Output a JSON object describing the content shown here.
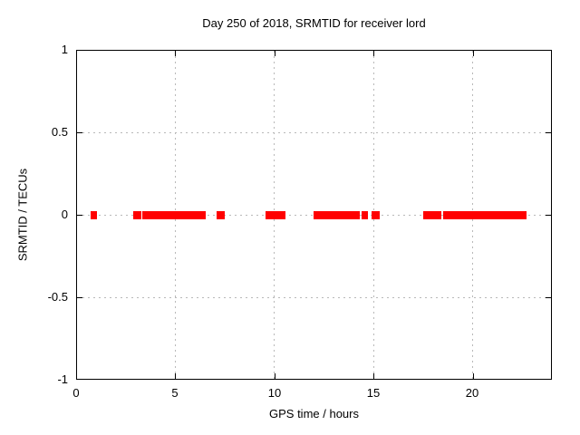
{
  "window": {
    "background": "#ffffff"
  },
  "colors": {
    "marker": "#ff0000",
    "grid": "#b9b9b9",
    "border": "#000000",
    "text": "#000000"
  },
  "chart_data": {
    "type": "scatter",
    "title": "Day 250 of 2018, SRMTID for receiver lord",
    "xlabel": "GPS time / hours",
    "ylabel": "SRMTID / TECUs",
    "xlim": [
      0,
      24
    ],
    "ylim": [
      -1,
      1
    ],
    "xticks": [
      0,
      5,
      10,
      15,
      20
    ],
    "xtick_labels": [
      "0",
      "5",
      "10",
      "15",
      "20"
    ],
    "yticks": [
      1,
      0.5,
      0,
      -0.5,
      -1
    ],
    "ytick_labels": [
      "1",
      "0.5",
      "0",
      "-0.5",
      "-1"
    ],
    "grid": true,
    "legend_position": "none",
    "series": [
      {
        "name": "SRMTID",
        "color": "#ff0000",
        "marker": "plus",
        "y_value": 0,
        "dense_segments_hours": [
          {
            "start": 0.75,
            "end": 1.05
          },
          {
            "start": 3.35,
            "end": 6.55
          },
          {
            "start": 9.55,
            "end": 9.95
          },
          {
            "start": 12.35,
            "end": 14.3
          },
          {
            "start": 14.4,
            "end": 14.7
          },
          {
            "start": 17.5,
            "end": 17.75
          },
          {
            "start": 18.5,
            "end": 22.3
          }
        ],
        "isolated_points_hours": [
          3.1,
          7.3,
          10.05,
          10.35,
          12.2,
          15.1,
          17.95,
          18.2,
          22.5
        ]
      }
    ]
  }
}
